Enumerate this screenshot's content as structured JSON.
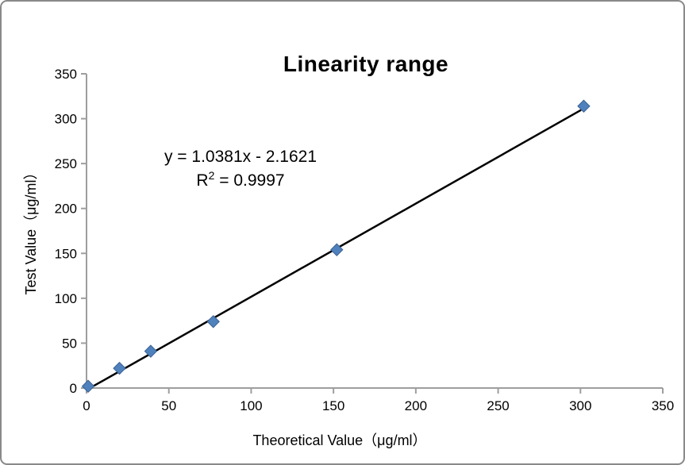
{
  "chart_data": {
    "type": "scatter",
    "title": "Linearity range",
    "xlabel": "Theoretical Value（μg/ml）",
    "ylabel": "Test Value（μg/ml）",
    "xlim": [
      0,
      350
    ],
    "ylim": [
      0,
      350
    ],
    "x_ticks": [
      0,
      50,
      100,
      150,
      200,
      250,
      300,
      350
    ],
    "y_ticks": [
      0,
      50,
      100,
      150,
      200,
      250,
      300,
      350
    ],
    "grid": false,
    "legend": "none",
    "points": [
      [
        1,
        2
      ],
      [
        20,
        22
      ],
      [
        39,
        41
      ],
      [
        77,
        74
      ],
      [
        152,
        154
      ],
      [
        302,
        314
      ]
    ],
    "trendline": {
      "slope": 1.0381,
      "intercept": -2.1621,
      "r_squared": 0.9997,
      "x_start": 2,
      "x_end": 300
    },
    "annotation": {
      "line1": "y = 1.0381x - 2.1621",
      "line2_base": "R",
      "line2_sup": "2",
      "line2_rest": " = 0.9997",
      "line2_full": "R² = 0.9997"
    },
    "colors": {
      "marker_fill": "#4F81BD",
      "marker_stroke": "#3B6394",
      "trendline": "#000000",
      "axis": "#9E9E9E",
      "text": "#000000"
    }
  }
}
